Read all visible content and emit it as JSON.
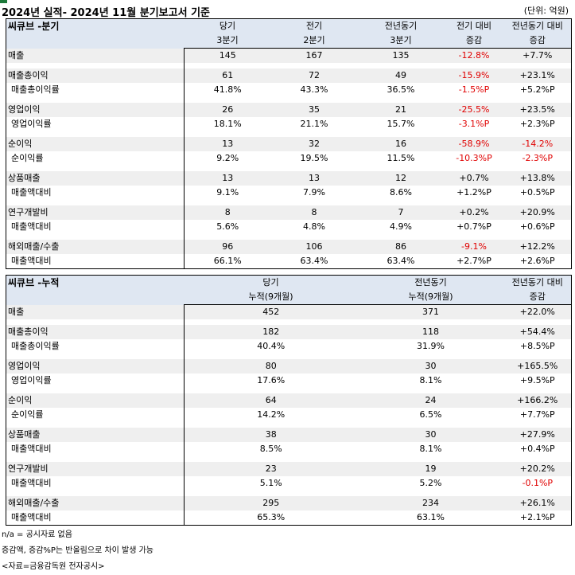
{
  "title": "2024년 실적- 2024년 11월 분기보고서 기준",
  "unit": "(단위: 억원)",
  "quarterly": {
    "name": "씨큐브 -분기",
    "headers": [
      [
        "당기",
        "3분기"
      ],
      [
        "전기",
        "2분기"
      ],
      [
        "전년동기",
        "3분기"
      ],
      [
        "전기 대비",
        "증감"
      ],
      [
        "전년동기 대비",
        "증감"
      ]
    ],
    "groups": [
      {
        "rows": [
          {
            "label": "매출",
            "values": [
              "145",
              "167",
              "135",
              "-12.8%",
              "+7.7%"
            ]
          }
        ]
      },
      {
        "rows": [
          {
            "label": "매출총이익",
            "values": [
              "61",
              "72",
              "49",
              "-15.9%",
              "+23.1%"
            ]
          },
          {
            "label": " 매출총이익률",
            "values": [
              "41.8%",
              "43.3%",
              "36.5%",
              "-1.5%P",
              "+5.2%P"
            ]
          }
        ]
      },
      {
        "rows": [
          {
            "label": "영업이익",
            "values": [
              "26",
              "35",
              "21",
              "-25.5%",
              "+23.5%"
            ]
          },
          {
            "label": " 영업이익률",
            "values": [
              "18.1%",
              "21.1%",
              "15.7%",
              "-3.1%P",
              "+2.3%P"
            ]
          }
        ]
      },
      {
        "rows": [
          {
            "label": "순이익",
            "values": [
              "13",
              "32",
              "16",
              "-58.9%",
              "-14.2%"
            ]
          },
          {
            "label": " 순이익률",
            "values": [
              "9.2%",
              "19.5%",
              "11.5%",
              "-10.3%P",
              "-2.3%P"
            ]
          }
        ]
      },
      {
        "rows": [
          {
            "label": "상품매출",
            "values": [
              "13",
              "13",
              "12",
              "+0.7%",
              "+13.8%"
            ]
          },
          {
            "label": " 매출액대비",
            "values": [
              "9.1%",
              "7.9%",
              "8.6%",
              "+1.2%P",
              "+0.5%P"
            ]
          }
        ]
      },
      {
        "rows": [
          {
            "label": "연구개발비",
            "values": [
              "8",
              "8",
              "7",
              "+0.2%",
              "+20.9%"
            ]
          },
          {
            "label": " 매출액대비",
            "values": [
              "5.6%",
              "4.8%",
              "4.9%",
              "+0.7%P",
              "+0.6%P"
            ]
          }
        ]
      },
      {
        "rows": [
          {
            "label": "해외매출/수출",
            "values": [
              "96",
              "106",
              "86",
              "-9.1%",
              "+12.2%"
            ]
          },
          {
            "label": " 매출액대비",
            "values": [
              "66.1%",
              "63.4%",
              "63.4%",
              "+2.7%P",
              "+2.6%P"
            ]
          }
        ]
      }
    ]
  },
  "cumulative": {
    "name": "씨큐브 -누적",
    "headers": [
      [
        "당기",
        "누적(9개월)"
      ],
      [
        "",
        ""
      ],
      [
        "전년동기",
        "누적(9개월)"
      ],
      [
        "",
        ""
      ],
      [
        "전년동기 대비",
        "증감"
      ]
    ],
    "groups": [
      {
        "rows": [
          {
            "label": "매출",
            "values": [
              "452",
              "",
              "371",
              "",
              "+22.0%"
            ]
          }
        ]
      },
      {
        "rows": [
          {
            "label": "매출총이익",
            "values": [
              "182",
              "",
              "118",
              "",
              "+54.4%"
            ]
          },
          {
            "label": " 매출총이익률",
            "values": [
              "40.4%",
              "",
              "31.9%",
              "",
              "+8.5%P"
            ]
          }
        ]
      },
      {
        "rows": [
          {
            "label": "영업이익",
            "values": [
              "80",
              "",
              "30",
              "",
              "+165.5%"
            ]
          },
          {
            "label": " 영업이익률",
            "values": [
              "17.6%",
              "",
              "8.1%",
              "",
              "+9.5%P"
            ]
          }
        ]
      },
      {
        "rows": [
          {
            "label": "순이익",
            "values": [
              "64",
              "",
              "24",
              "",
              "+166.2%"
            ]
          },
          {
            "label": " 순이익률",
            "values": [
              "14.2%",
              "",
              "6.5%",
              "",
              "+7.7%P"
            ]
          }
        ]
      },
      {
        "rows": [
          {
            "label": "상품매출",
            "values": [
              "38",
              "",
              "30",
              "",
              "+27.9%"
            ]
          },
          {
            "label": " 매출액대비",
            "values": [
              "8.5%",
              "",
              "8.1%",
              "",
              "+0.4%P"
            ]
          }
        ]
      },
      {
        "rows": [
          {
            "label": "연구개발비",
            "values": [
              "23",
              "",
              "19",
              "",
              "+20.2%"
            ]
          },
          {
            "label": " 매출액대비",
            "values": [
              "5.1%",
              "",
              "5.2%",
              "",
              "-0.1%P"
            ]
          }
        ]
      },
      {
        "rows": [
          {
            "label": "해외매출/수출",
            "values": [
              "295",
              "",
              "234",
              "",
              "+26.1%"
            ]
          },
          {
            "label": " 매출액대비",
            "values": [
              "65.3%",
              "",
              "63.1%",
              "",
              "+2.1%P"
            ]
          }
        ]
      }
    ]
  },
  "notes": [
    "n/a = 공시자료 없음",
    "증감액, 증감%P는 반올림으로 차이 발생 가능",
    "<자료=금융감독원 전자공시>"
  ],
  "colors": {
    "header_bg": "#dfe7f2",
    "group_bg": "#efefef",
    "negative": "#e00000",
    "corner_mark": "#1e7a3b"
  }
}
